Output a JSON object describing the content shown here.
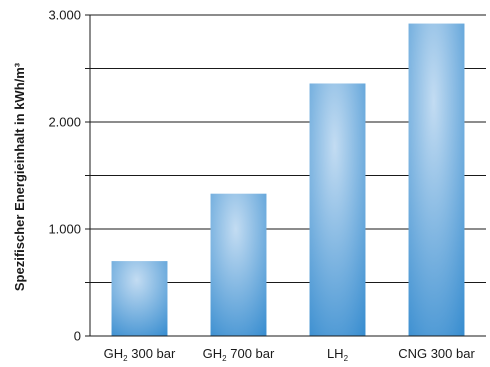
{
  "chart_data": {
    "type": "bar",
    "ylabel": "Spezifischer Energieinhalt in kWh/m³",
    "ylim": [
      0,
      3000
    ],
    "yticks": [
      0,
      500,
      1000,
      1500,
      2000,
      2500,
      3000
    ],
    "ytick_labels": [
      "0",
      "",
      "1.000",
      "",
      "2.000",
      "",
      "3.000"
    ],
    "categories": [
      {
        "main": "GH",
        "sub": "2",
        "rest": " 300 bar"
      },
      {
        "main": "GH",
        "sub": "2",
        "rest": " 700 bar"
      },
      {
        "main": "LH",
        "sub": "2",
        "rest": ""
      },
      {
        "main": "CNG 300 bar",
        "sub": "",
        "rest": ""
      }
    ],
    "values": [
      700,
      1330,
      2360,
      2920
    ],
    "grid": true,
    "bar_color_light": "#b8d4ee",
    "bar_color_dark": "#3b8fd0"
  }
}
